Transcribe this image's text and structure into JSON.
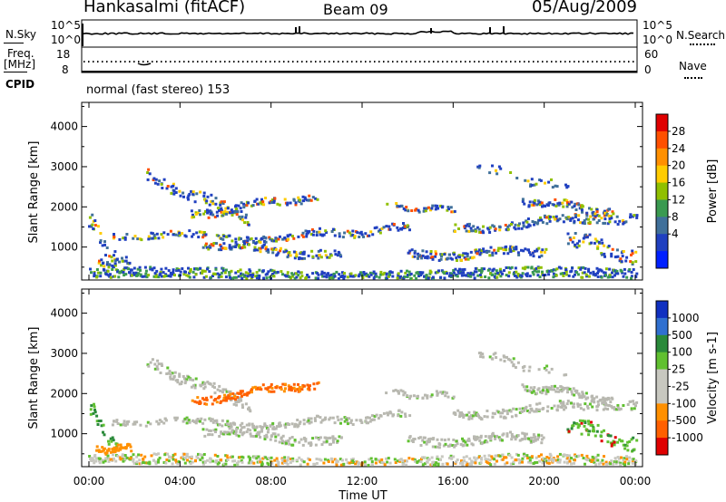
{
  "header": {
    "station": "Hankasalmi (fitACF)",
    "beam": "Beam 09",
    "date": "05/Aug/2009"
  },
  "strip_nsky": {
    "label_left": "N.Sky",
    "label_right": "N.Search",
    "left_ticks": [
      "10^5",
      "10^0"
    ],
    "right_ticks": [
      "10^5",
      "10^0"
    ]
  },
  "strip_freq": {
    "label_left_1": "Freq.",
    "label_left_2": "[MHz]",
    "label_right": "Nave",
    "left_ticks": [
      "18",
      "8"
    ],
    "right_ticks": [
      "60",
      "0"
    ]
  },
  "cpid": {
    "label": "CPID",
    "text": "normal (fast stereo) 153"
  },
  "chart_data": [
    {
      "type": "heatmap",
      "panel": "power",
      "ylabel": "Slant Range [km]",
      "ylim": [
        180,
        4600
      ],
      "yticks": [
        1000,
        2000,
        3000,
        4000
      ],
      "xlabel": "",
      "colorbar": {
        "label": "Power [dB]",
        "ticks": [
          "28",
          "24",
          "20",
          "16",
          "12",
          "8",
          "4"
        ],
        "colors": [
          "#e00000",
          "#ff5000",
          "#ff9000",
          "#ffcc00",
          "#90c000",
          "#3a9a50",
          "#40709a",
          "#2040c0",
          "#0020ff"
        ]
      }
    },
    {
      "type": "heatmap",
      "panel": "velocity",
      "ylabel": "Slant Range [km]",
      "ylim": [
        180,
        4600
      ],
      "yticks": [
        1000,
        2000,
        3000,
        4000
      ],
      "xlabel": "Time UT",
      "xticks": [
        "00:00",
        "04:00",
        "08:00",
        "12:00",
        "16:00",
        "20:00",
        "00:00"
      ],
      "colorbar": {
        "label": "Velocity [m s-1]",
        "ticks": [
          "1000",
          "500",
          "100",
          "25",
          "-25",
          "-100",
          "-500",
          "-1000"
        ],
        "colors": [
          "#1030c0",
          "#3070d0",
          "#2a8a3a",
          "#60c030",
          "#c8c8c0",
          "#c8c8c0",
          "#ff9000",
          "#ff6000",
          "#e00000"
        ]
      }
    }
  ],
  "colors": {
    "axis": "#000000",
    "ground_scatter": "#b8b8b0"
  }
}
